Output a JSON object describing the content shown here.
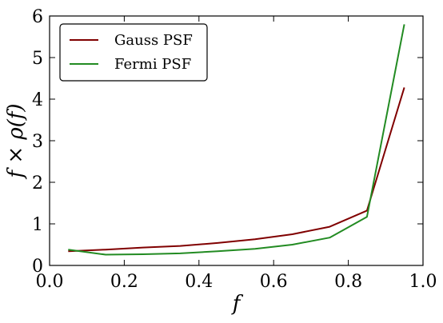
{
  "chart_data": {
    "type": "line",
    "xlabel": "f",
    "ylabel": "f × ρ(f)",
    "xlim": [
      0.0,
      1.0
    ],
    "ylim": [
      0,
      6
    ],
    "xticks": [
      "0.0",
      "0.2",
      "0.4",
      "0.6",
      "0.8",
      "1.0"
    ],
    "yticks": [
      "0",
      "1",
      "2",
      "3",
      "4",
      "5",
      "6"
    ],
    "grid": false,
    "legend_position": "top-left",
    "series": [
      {
        "name": "Gauss PSF",
        "color": "#800000",
        "x": [
          0.05,
          0.15,
          0.25,
          0.35,
          0.45,
          0.55,
          0.65,
          0.75,
          0.85,
          0.95
        ],
        "y": [
          0.34,
          0.38,
          0.43,
          0.47,
          0.54,
          0.63,
          0.75,
          0.93,
          1.32,
          4.28
        ]
      },
      {
        "name": "Fermi PSF",
        "color": "#228B22",
        "x": [
          0.05,
          0.15,
          0.25,
          0.35,
          0.45,
          0.55,
          0.65,
          0.75,
          0.85,
          0.95
        ],
        "y": [
          0.38,
          0.26,
          0.27,
          0.29,
          0.34,
          0.4,
          0.5,
          0.67,
          1.17,
          5.8
        ]
      }
    ]
  }
}
